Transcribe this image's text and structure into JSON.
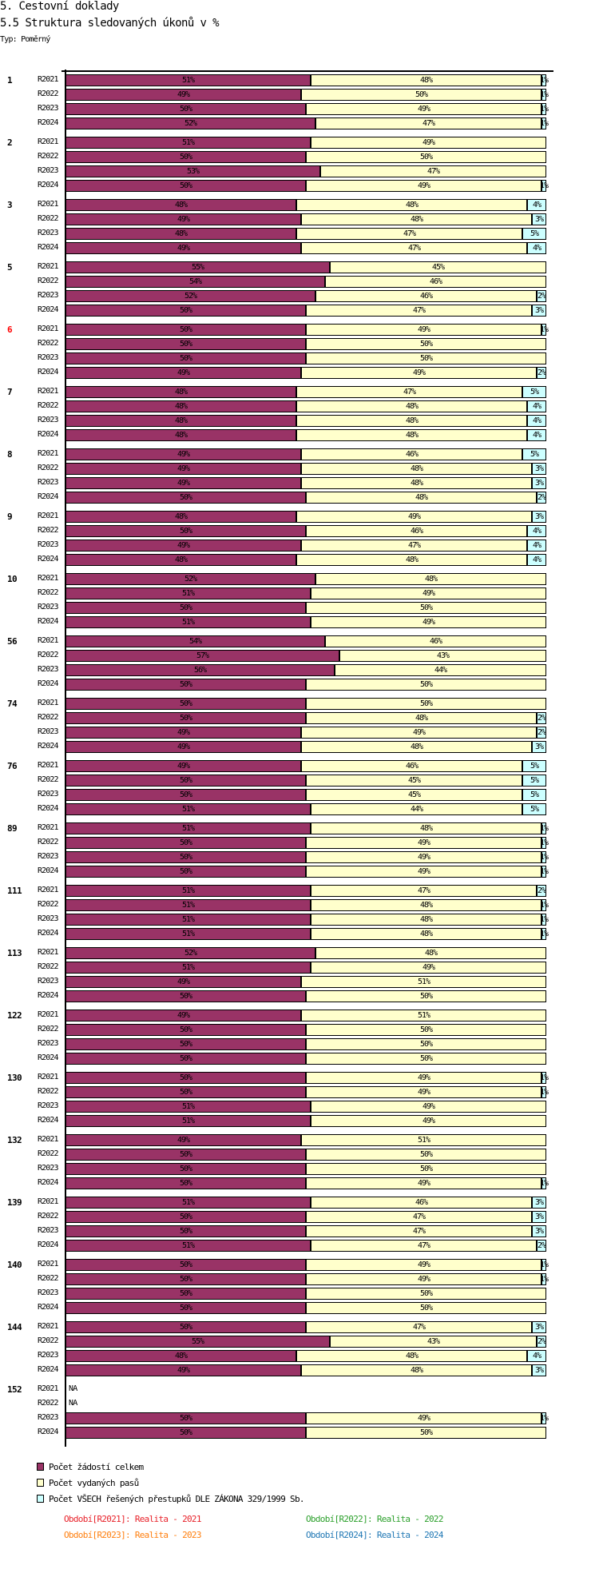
{
  "header": {
    "title": "5. Cestovní doklady",
    "subtitle": "5.5 Struktura sledovaných úkonů v %",
    "type_label": "Typ: Poměrný"
  },
  "colors": {
    "series1": "#993366",
    "series2": "#ffffcc",
    "series3": "#ccffff",
    "highlight_group": "#ff0000",
    "period_R2021": "#e8222a",
    "period_R2022": "#2ca02c",
    "period_R2023": "#ff7f0e",
    "period_R2024": "#1f77b4"
  },
  "chart_data": {
    "type": "bar",
    "orientation": "horizontal",
    "stacked": "percent",
    "title": "5.5 Struktura sledovaných úkonů v %",
    "series_names": [
      "Počet žádostí celkem",
      "Počet vydaných pasů",
      "Počet VŠECH řešených přestupků DLE ZÁKONA 329/1999 Sb."
    ],
    "periods": [
      "R2021",
      "R2022",
      "R2023",
      "R2024"
    ],
    "na_label": "NA",
    "highlighted_group": "6",
    "groups": [
      {
        "label": "1",
        "values": [
          [
            51,
            48,
            1
          ],
          [
            49,
            50,
            1
          ],
          [
            50,
            49,
            1
          ],
          [
            52,
            47,
            1
          ]
        ]
      },
      {
        "label": "2",
        "values": [
          [
            51,
            49,
            0
          ],
          [
            50,
            50,
            0
          ],
          [
            53,
            47,
            0
          ],
          [
            50,
            49,
            1
          ]
        ]
      },
      {
        "label": "3",
        "values": [
          [
            48,
            48,
            4
          ],
          [
            49,
            48,
            3
          ],
          [
            48,
            47,
            5
          ],
          [
            49,
            47,
            4
          ]
        ]
      },
      {
        "label": "5",
        "values": [
          [
            55,
            45,
            0
          ],
          [
            54,
            46,
            0
          ],
          [
            52,
            46,
            2
          ],
          [
            50,
            47,
            3
          ]
        ]
      },
      {
        "label": "6",
        "values": [
          [
            50,
            49,
            1
          ],
          [
            50,
            50,
            0
          ],
          [
            50,
            50,
            0
          ],
          [
            49,
            49,
            2
          ]
        ]
      },
      {
        "label": "7",
        "values": [
          [
            48,
            47,
            5
          ],
          [
            48,
            48,
            4
          ],
          [
            48,
            48,
            4
          ],
          [
            48,
            48,
            4
          ]
        ]
      },
      {
        "label": "8",
        "values": [
          [
            49,
            46,
            5
          ],
          [
            49,
            48,
            3
          ],
          [
            49,
            48,
            3
          ],
          [
            50,
            48,
            2
          ]
        ]
      },
      {
        "label": "9",
        "values": [
          [
            48,
            49,
            3
          ],
          [
            50,
            46,
            4
          ],
          [
            49,
            47,
            4
          ],
          [
            48,
            48,
            4
          ]
        ]
      },
      {
        "label": "10",
        "values": [
          [
            52,
            48,
            0
          ],
          [
            51,
            49,
            0
          ],
          [
            50,
            50,
            0
          ],
          [
            51,
            49,
            0
          ]
        ]
      },
      {
        "label": "56",
        "values": [
          [
            54,
            46,
            0
          ],
          [
            57,
            43,
            0
          ],
          [
            56,
            44,
            0
          ],
          [
            50,
            50,
            0
          ]
        ]
      },
      {
        "label": "74",
        "values": [
          [
            50,
            50,
            0
          ],
          [
            50,
            48,
            2
          ],
          [
            49,
            49,
            2
          ],
          [
            49,
            48,
            3
          ]
        ]
      },
      {
        "label": "76",
        "values": [
          [
            49,
            46,
            5
          ],
          [
            50,
            45,
            5
          ],
          [
            50,
            45,
            5
          ],
          [
            51,
            44,
            5
          ]
        ]
      },
      {
        "label": "89",
        "values": [
          [
            51,
            48,
            1
          ],
          [
            50,
            49,
            1
          ],
          [
            50,
            49,
            1
          ],
          [
            50,
            49,
            1
          ]
        ]
      },
      {
        "label": "111",
        "values": [
          [
            51,
            47,
            2
          ],
          [
            51,
            48,
            1
          ],
          [
            51,
            48,
            1
          ],
          [
            51,
            48,
            1
          ]
        ]
      },
      {
        "label": "113",
        "values": [
          [
            52,
            48,
            0
          ],
          [
            51,
            49,
            0
          ],
          [
            49,
            51,
            0
          ],
          [
            50,
            50,
            0
          ]
        ]
      },
      {
        "label": "122",
        "values": [
          [
            49,
            51,
            0
          ],
          [
            50,
            50,
            0
          ],
          [
            50,
            50,
            0
          ],
          [
            50,
            50,
            0
          ]
        ]
      },
      {
        "label": "130",
        "values": [
          [
            50,
            49,
            1
          ],
          [
            50,
            49,
            1
          ],
          [
            51,
            49,
            0
          ],
          [
            51,
            49,
            0
          ]
        ]
      },
      {
        "label": "132",
        "values": [
          [
            49,
            51,
            0
          ],
          [
            50,
            50,
            0
          ],
          [
            50,
            50,
            0
          ],
          [
            50,
            49,
            1
          ]
        ]
      },
      {
        "label": "139",
        "values": [
          [
            51,
            46,
            3
          ],
          [
            50,
            47,
            3
          ],
          [
            50,
            47,
            3
          ],
          [
            51,
            47,
            2
          ]
        ]
      },
      {
        "label": "140",
        "values": [
          [
            50,
            49,
            1
          ],
          [
            50,
            49,
            1
          ],
          [
            50,
            50,
            0
          ],
          [
            50,
            50,
            0
          ]
        ]
      },
      {
        "label": "144",
        "values": [
          [
            50,
            47,
            3
          ],
          [
            55,
            43,
            2
          ],
          [
            48,
            48,
            4
          ],
          [
            49,
            48,
            3
          ]
        ]
      },
      {
        "label": "152",
        "values": [
          null,
          null,
          [
            50,
            49,
            1
          ],
          [
            50,
            50,
            0
          ]
        ]
      }
    ],
    "xlim": [
      0,
      100
    ],
    "grid": false
  },
  "legend": {
    "items": [
      "Počet žádostí celkem",
      "Počet vydaných pasů",
      "Počet VŠECH řešených přestupků DLE ZÁKONA 329/1999 Sb."
    ]
  },
  "footer": {
    "periods": [
      "Období[R2021]: Realita - 2021",
      "Období[R2022]: Realita - 2022",
      "Období[R2023]: Realita - 2023",
      "Období[R2024]: Realita - 2024"
    ]
  }
}
